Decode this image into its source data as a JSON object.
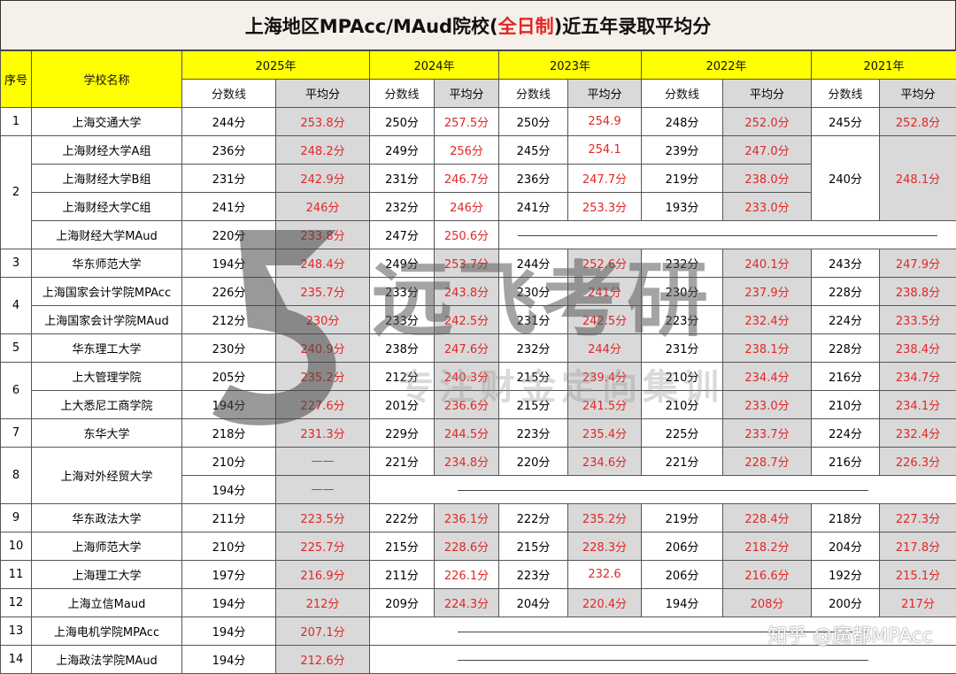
{
  "title": {
    "pre": "上海地区MPAcc/MAud院校(",
    "highlight": "全日制",
    "post": ")近五年录取平均分"
  },
  "header": {
    "seq": "序号",
    "school": "学校名称",
    "years": [
      "2025年",
      "2024年",
      "2023年",
      "2022年",
      "2021年"
    ],
    "score_line": "分数线",
    "avg": "平均分"
  },
  "rows": [
    {
      "seq": "1",
      "school": "上海交通大学",
      "y2025": [
        "244分",
        "253.8分"
      ],
      "y2024": [
        "250分",
        "257.5分"
      ],
      "y2023": [
        "250分",
        "254.9"
      ],
      "y2022": [
        "248分",
        "252.0分"
      ],
      "y2021": [
        "245分",
        "252.8分"
      ]
    },
    {
      "seq": "2",
      "school": "上海财经大学A组",
      "y2025": [
        "236分",
        "248.2分"
      ],
      "y2024": [
        "249分",
        "256分"
      ],
      "y2023": [
        "245分",
        "254.1"
      ],
      "y2022": [
        "239分",
        "247.0分"
      ],
      "y2021": [
        "240分",
        "248.1分"
      ]
    },
    {
      "school": "上海财经大学B组",
      "y2025": [
        "231分",
        "242.9分"
      ],
      "y2024": [
        "231分",
        "246.7分"
      ],
      "y2023": [
        "236分",
        "247.7分"
      ],
      "y2022": [
        "219分",
        "238.0分"
      ]
    },
    {
      "school": "上海财经大学C组",
      "y2025": [
        "241分",
        "246分"
      ],
      "y2024": [
        "232分",
        "246分"
      ],
      "y2023": [
        "241分",
        "253.3分"
      ],
      "y2022": [
        "193分",
        "233.0分"
      ]
    },
    {
      "school": "上海财经大学MAud",
      "y2025": [
        "220分",
        "233.8分"
      ],
      "y2024": [
        "247分",
        "250.6分"
      ]
    },
    {
      "seq": "3",
      "school": "华东师范大学",
      "y2025": [
        "194分",
        "248.4分"
      ],
      "y2024": [
        "249分",
        "253.7分"
      ],
      "y2023": [
        "244分",
        "252.6分"
      ],
      "y2022": [
        "232分",
        "240.1分"
      ],
      "y2021": [
        "243分",
        "247.9分"
      ]
    },
    {
      "seq": "4",
      "school": "上海国家会计学院MPAcc",
      "y2025": [
        "226分",
        "235.7分"
      ],
      "y2024": [
        "233分",
        "243.8分"
      ],
      "y2023": [
        "230分",
        "241分"
      ],
      "y2022": [
        "230分",
        "237.9分"
      ],
      "y2021": [
        "228分",
        "238.8分"
      ]
    },
    {
      "school": "上海国家会计学院MAud",
      "y2025": [
        "212分",
        "230分"
      ],
      "y2024": [
        "233分",
        "242.5分"
      ],
      "y2023": [
        "231分",
        "242.5分"
      ],
      "y2022": [
        "223分",
        "232.4分"
      ],
      "y2021": [
        "224分",
        "233.5分"
      ]
    },
    {
      "seq": "5",
      "school": "华东理工大学",
      "y2025": [
        "230分",
        "240.9分"
      ],
      "y2024": [
        "238分",
        "247.6分"
      ],
      "y2023": [
        "232分",
        "244分"
      ],
      "y2022": [
        "231分",
        "238.1分"
      ],
      "y2021": [
        "228分",
        "238.4分"
      ]
    },
    {
      "seq": "6",
      "school": "上大管理学院",
      "y2025": [
        "205分",
        "235.2分"
      ],
      "y2024": [
        "212分",
        "240.3分"
      ],
      "y2023": [
        "215分",
        "239.4分"
      ],
      "y2022": [
        "210分",
        "234.4分"
      ],
      "y2021": [
        "216分",
        "234.7分"
      ]
    },
    {
      "school": "上大悉尼工商学院",
      "y2025": [
        "194分",
        "227.6分"
      ],
      "y2024": [
        "201分",
        "236.6分"
      ],
      "y2023": [
        "215分",
        "241.5分"
      ],
      "y2022": [
        "210分",
        "233.0分"
      ],
      "y2021": [
        "210分",
        "234.1分"
      ]
    },
    {
      "seq": "7",
      "school": "东华大学",
      "y2025": [
        "218分",
        "231.3分"
      ],
      "y2024": [
        "229分",
        "244.5分"
      ],
      "y2023": [
        "223分",
        "235.4分"
      ],
      "y2022": [
        "225分",
        "233.7分"
      ],
      "y2021": [
        "224分",
        "232.4分"
      ]
    },
    {
      "seq": "8",
      "school": "上海对外经贸大学",
      "y2025": [
        "210分",
        "——"
      ],
      "y2024": [
        "221分",
        "234.8分"
      ],
      "y2023": [
        "220分",
        "234.6分"
      ],
      "y2022": [
        "221分",
        "228.7分"
      ],
      "y2021": [
        "216分",
        "226.3分"
      ]
    },
    {
      "y2025": [
        "194分",
        "——"
      ]
    },
    {
      "seq": "9",
      "school": "华东政法大学",
      "y2025": [
        "211分",
        "223.5分"
      ],
      "y2024": [
        "222分",
        "236.1分"
      ],
      "y2023": [
        "222分",
        "235.2分"
      ],
      "y2022": [
        "219分",
        "228.4分"
      ],
      "y2021": [
        "218分",
        "227.3分"
      ]
    },
    {
      "seq": "10",
      "school": "上海师范大学",
      "y2025": [
        "210分",
        "225.7分"
      ],
      "y2024": [
        "215分",
        "228.6分"
      ],
      "y2023": [
        "215分",
        "228.3分"
      ],
      "y2022": [
        "206分",
        "218.2分"
      ],
      "y2021": [
        "204分",
        "217.8分"
      ]
    },
    {
      "seq": "11",
      "school": "上海理工大学",
      "y2025": [
        "197分",
        "216.9分"
      ],
      "y2024": [
        "211分",
        "226.1分"
      ],
      "y2023": [
        "223分",
        "232.6"
      ],
      "y2022": [
        "206分",
        "216.6分"
      ],
      "y2021": [
        "192分",
        "215.1分"
      ]
    },
    {
      "seq": "12",
      "school": "上海立信Maud",
      "y2025": [
        "194分",
        "212分"
      ],
      "y2024": [
        "209分",
        "224.3分"
      ],
      "y2023": [
        "204分",
        "220.4分"
      ],
      "y2022": [
        "194分",
        "208分"
      ],
      "y2021": [
        "200分",
        "217分"
      ]
    },
    {
      "seq": "13",
      "school": "上海电机学院MPAcc",
      "y2025": [
        "194分",
        "207.1分"
      ]
    },
    {
      "seq": "14",
      "school": "上海政法学院MAud",
      "y2025": [
        "194分",
        "212.6分"
      ]
    }
  ],
  "watermark": {
    "brand": "远飞考研",
    "slogan": "专注财金定向集训",
    "zhihu": "知乎 @魔都MPAcc"
  }
}
